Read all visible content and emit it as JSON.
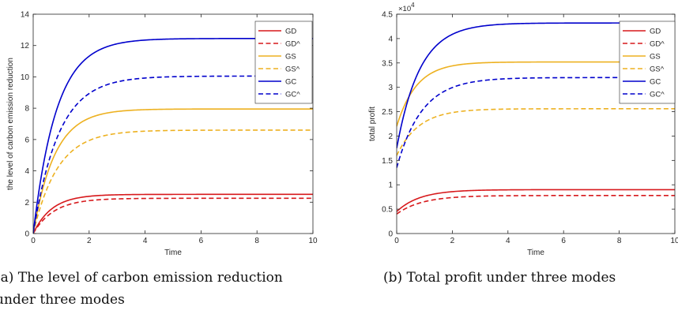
{
  "chart_data": [
    {
      "type": "line",
      "xlabel": "Time",
      "ylabel": "the level of carbon emission reduction",
      "xlim": [
        0,
        10
      ],
      "ylim": [
        0,
        14
      ],
      "xticks": [
        "0",
        "2",
        "4",
        "6",
        "8",
        "10"
      ],
      "yticks": [
        "0",
        "2",
        "4",
        "6",
        "8",
        "10",
        "12",
        "14"
      ],
      "legend_position": "top-right",
      "caption": "(a) The level of carbon emission reduction under three modes",
      "series": [
        {
          "name": "GD",
          "color": "#d7191c",
          "style": "solid",
          "start": 0,
          "end": 2.5,
          "rate": 1.5
        },
        {
          "name": "GD^",
          "color": "#d7191c",
          "style": "dashed",
          "start": 0,
          "end": 2.25,
          "rate": 1.35
        },
        {
          "name": "GS",
          "color": "#edb120",
          "style": "solid",
          "start": 0,
          "end": 7.95,
          "rate": 1.3
        },
        {
          "name": "GS^",
          "color": "#edb120",
          "style": "dashed",
          "start": 0,
          "end": 6.6,
          "rate": 1.15
        },
        {
          "name": "GC",
          "color": "#0000cc",
          "style": "solid",
          "start": 0,
          "end": 12.45,
          "rate": 1.2
        },
        {
          "name": "GC^",
          "color": "#0000cc",
          "style": "dashed",
          "start": 0,
          "end": 10.05,
          "rate": 1.1
        }
      ]
    },
    {
      "type": "line",
      "xlabel": "Time",
      "ylabel": "total profit",
      "exponent_label": "×10",
      "exponent_power": "4",
      "xlim": [
        0,
        10
      ],
      "ylim": [
        0,
        4.5
      ],
      "xticks": [
        "0",
        "2",
        "4",
        "6",
        "8",
        "10"
      ],
      "yticks": [
        "0",
        "0.5",
        "1",
        "1.5",
        "2",
        "2.5",
        "3",
        "3.5",
        "4",
        "4.5"
      ],
      "legend_position": "top-right",
      "caption": "(b) Total profit under three modes",
      "series": [
        {
          "name": "GD",
          "color": "#d7191c",
          "style": "solid",
          "start": 0.45,
          "end": 0.9,
          "rate": 1.2
        },
        {
          "name": "GD^",
          "color": "#d7191c",
          "style": "dashed",
          "start": 0.4,
          "end": 0.78,
          "rate": 1.1
        },
        {
          "name": "GS",
          "color": "#edb120",
          "style": "solid",
          "start": 2.2,
          "end": 3.52,
          "rate": 1.4
        },
        {
          "name": "GS^",
          "color": "#edb120",
          "style": "dashed",
          "start": 1.6,
          "end": 2.56,
          "rate": 1.25
        },
        {
          "name": "GC",
          "color": "#0000cc",
          "style": "solid",
          "start": 1.75,
          "end": 4.32,
          "rate": 1.2
        },
        {
          "name": "GC^",
          "color": "#0000cc",
          "style": "dashed",
          "start": 1.35,
          "end": 3.2,
          "rate": 1.1
        }
      ]
    }
  ]
}
